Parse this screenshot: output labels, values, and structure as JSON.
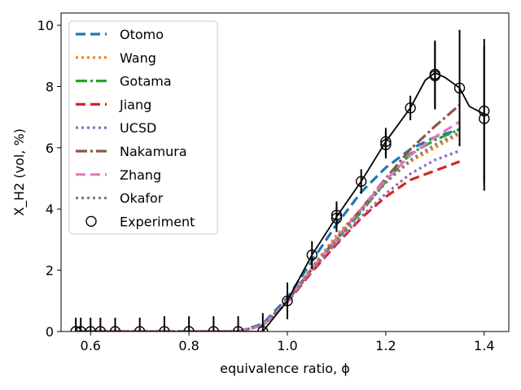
{
  "chart_data": {
    "type": "line",
    "xlabel": "equivalence ratio, ϕ",
    "ylabel": "X_H2 (vol, %)",
    "xlim": [
      0.54,
      1.45
    ],
    "ylim": [
      0,
      10.4
    ],
    "xticks": [
      0.6,
      0.8,
      1.0,
      1.2,
      1.4
    ],
    "xtick_labels": [
      "0.6",
      "0.8",
      "1.0",
      "1.2",
      "1.4"
    ],
    "yticks": [
      0,
      2,
      4,
      6,
      8,
      10
    ],
    "ytick_labels": [
      "0",
      "2",
      "4",
      "6",
      "8",
      "10"
    ],
    "grid": false,
    "legend_position": "upper-left",
    "series": [
      {
        "name": "Otomo",
        "color": "#1f77b4",
        "dash": "12,6",
        "width": 3.2,
        "x": [
          0.57,
          0.6,
          0.7,
          0.8,
          0.9,
          0.95,
          1.0,
          1.05,
          1.1,
          1.15,
          1.2,
          1.25,
          1.3,
          1.35
        ],
        "y": [
          0,
          0,
          0,
          0,
          0,
          0.25,
          1.1,
          2.3,
          3.5,
          4.55,
          5.35,
          5.95,
          6.35,
          6.6
        ]
      },
      {
        "name": "Wang",
        "color": "#ff7f0e",
        "dash": "3,4",
        "width": 3.2,
        "x": [
          0.57,
          0.6,
          0.7,
          0.8,
          0.9,
          0.95,
          1.0,
          1.05,
          1.1,
          1.15,
          1.2,
          1.25,
          1.3,
          1.35
        ],
        "y": [
          0,
          0,
          0,
          0,
          0,
          0.2,
          1.0,
          2.1,
          3.15,
          4.0,
          4.9,
          5.55,
          6.0,
          6.45
        ]
      },
      {
        "name": "Gotama",
        "color": "#2ca02c",
        "dash": "14,4,3,4",
        "width": 3.2,
        "x": [
          0.57,
          0.6,
          0.7,
          0.8,
          0.9,
          0.95,
          1.0,
          1.05,
          1.1,
          1.15,
          1.2,
          1.25,
          1.3,
          1.35
        ],
        "y": [
          0,
          0,
          0,
          0,
          0,
          0.2,
          1.0,
          2.05,
          3.0,
          3.9,
          4.9,
          5.8,
          6.25,
          6.6
        ]
      },
      {
        "name": "Jiang",
        "color": "#d62728",
        "dash": "12,6",
        "width": 3.2,
        "x": [
          0.57,
          0.6,
          0.7,
          0.8,
          0.9,
          0.95,
          1.0,
          1.05,
          1.1,
          1.15,
          1.2,
          1.25,
          1.3,
          1.35
        ],
        "y": [
          0,
          0,
          0,
          0,
          0,
          0.2,
          0.95,
          1.95,
          2.85,
          3.7,
          4.4,
          4.95,
          5.25,
          5.55
        ]
      },
      {
        "name": "UCSD",
        "color": "#9467bd",
        "dash": "3,4",
        "width": 3.2,
        "x": [
          0.57,
          0.6,
          0.7,
          0.8,
          0.9,
          0.95,
          1.0,
          1.05,
          1.1,
          1.15,
          1.2,
          1.25,
          1.3,
          1.35
        ],
        "y": [
          0,
          0,
          0,
          0,
          0,
          0.2,
          0.95,
          2.0,
          2.9,
          3.75,
          4.5,
          5.15,
          5.6,
          5.9
        ]
      },
      {
        "name": "Nakamura",
        "color": "#8c564b",
        "dash": "14,4,3,4",
        "width": 3.2,
        "x": [
          0.57,
          0.6,
          0.7,
          0.8,
          0.9,
          0.95,
          1.0,
          1.05,
          1.1,
          1.15,
          1.2,
          1.25,
          1.3,
          1.35
        ],
        "y": [
          0,
          0,
          0,
          0,
          0,
          0.2,
          1.0,
          2.05,
          3.05,
          4.0,
          5.0,
          5.95,
          6.7,
          7.4
        ]
      },
      {
        "name": "Zhang",
        "color": "#e377c2",
        "dash": "12,6",
        "width": 3.2,
        "x": [
          0.57,
          0.6,
          0.7,
          0.8,
          0.9,
          0.95,
          1.0,
          1.05,
          1.1,
          1.15,
          1.2,
          1.25,
          1.3,
          1.35
        ],
        "y": [
          0,
          0,
          0,
          0,
          0,
          0.2,
          1.0,
          2.05,
          3.05,
          4.0,
          4.95,
          5.75,
          6.35,
          6.85
        ]
      },
      {
        "name": "Okafor",
        "color": "#7f7f7f",
        "dash": "3,4",
        "width": 3.2,
        "x": [
          0.57,
          0.6,
          0.7,
          0.8,
          0.9,
          0.95,
          1.0,
          1.05,
          1.1,
          1.15,
          1.2,
          1.25,
          1.3,
          1.35
        ],
        "y": [
          0,
          0,
          0,
          0,
          0,
          0.2,
          1.0,
          2.05,
          3.0,
          3.95,
          4.85,
          5.6,
          6.1,
          6.5
        ]
      }
    ],
    "experiment_line": {
      "color": "#000000",
      "x": [
        0.57,
        0.58,
        0.6,
        0.62,
        0.65,
        0.7,
        0.75,
        0.8,
        0.85,
        0.9,
        0.95,
        1.0,
        1.05,
        1.1,
        1.15,
        1.2,
        1.25,
        1.28,
        1.3,
        1.32,
        1.35,
        1.37,
        1.4
      ],
      "y": [
        0,
        0,
        0,
        0,
        0,
        0,
        0,
        0,
        0,
        0,
        0,
        1.0,
        2.5,
        3.75,
        4.9,
        6.2,
        7.3,
        8.2,
        8.45,
        8.3,
        7.95,
        7.35,
        7.1
      ]
    },
    "experiment": {
      "name": "Experiment",
      "x": [
        0.57,
        0.58,
        0.6,
        0.62,
        0.65,
        0.7,
        0.75,
        0.8,
        0.85,
        0.9,
        0.95,
        1.0,
        1.05,
        1.1,
        1.1,
        1.15,
        1.2,
        1.2,
        1.25,
        1.3,
        1.3,
        1.35,
        1.4,
        1.4
      ],
      "y": [
        0,
        0,
        0,
        0,
        0,
        0,
        0,
        0,
        0,
        0,
        0,
        1.0,
        2.5,
        3.7,
        3.8,
        4.9,
        6.1,
        6.2,
        7.3,
        8.35,
        8.4,
        7.95,
        7.2,
        6.95
      ],
      "err": [
        0.45,
        0.45,
        0.45,
        0.45,
        0.45,
        0.45,
        0.5,
        0.5,
        0.5,
        0.5,
        0.6,
        0.6,
        0.45,
        0.45,
        0.45,
        0.4,
        0.45,
        0.45,
        0.4,
        1.1,
        1.1,
        1.9,
        2.35,
        2.35
      ]
    }
  }
}
